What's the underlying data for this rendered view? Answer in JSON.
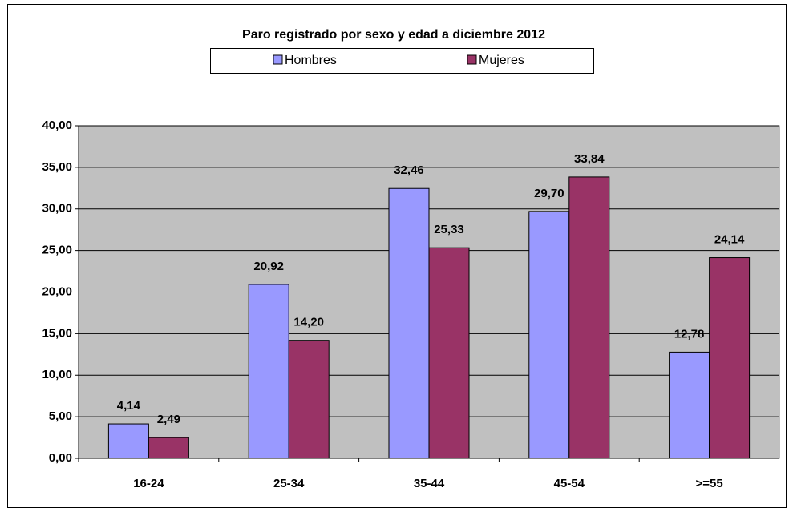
{
  "chart_data": {
    "type": "bar",
    "title": "Paro registrado por sexo y edad a diciembre 2012",
    "categories": [
      "16-24",
      "25-34",
      "35-44",
      "45-54",
      ">=55"
    ],
    "series": [
      {
        "name": "Hombres",
        "color": "#9999ff",
        "values": [
          4.14,
          20.92,
          32.46,
          29.7,
          12.78
        ],
        "value_labels": [
          "4,14",
          "20,92",
          "32,46",
          "29,70",
          "12,78"
        ]
      },
      {
        "name": "Mujeres",
        "color": "#993366",
        "values": [
          2.49,
          14.2,
          25.33,
          33.84,
          24.14
        ],
        "value_labels": [
          "2,49",
          "14,20",
          "25,33",
          "33,84",
          "24,14"
        ]
      }
    ],
    "ylim": [
      0,
      40
    ],
    "yticks": [
      {
        "value": 0,
        "label": "0,00"
      },
      {
        "value": 5,
        "label": "5,00"
      },
      {
        "value": 10,
        "label": "10,00"
      },
      {
        "value": 15,
        "label": "15,00"
      },
      {
        "value": 20,
        "label": "20,00"
      },
      {
        "value": 25,
        "label": "25,00"
      },
      {
        "value": 30,
        "label": "30,00"
      },
      {
        "value": 35,
        "label": "35,00"
      },
      {
        "value": 40,
        "label": "40,00"
      }
    ],
    "grid": true,
    "legend": "top",
    "plot_background": "#c0c0c0"
  }
}
